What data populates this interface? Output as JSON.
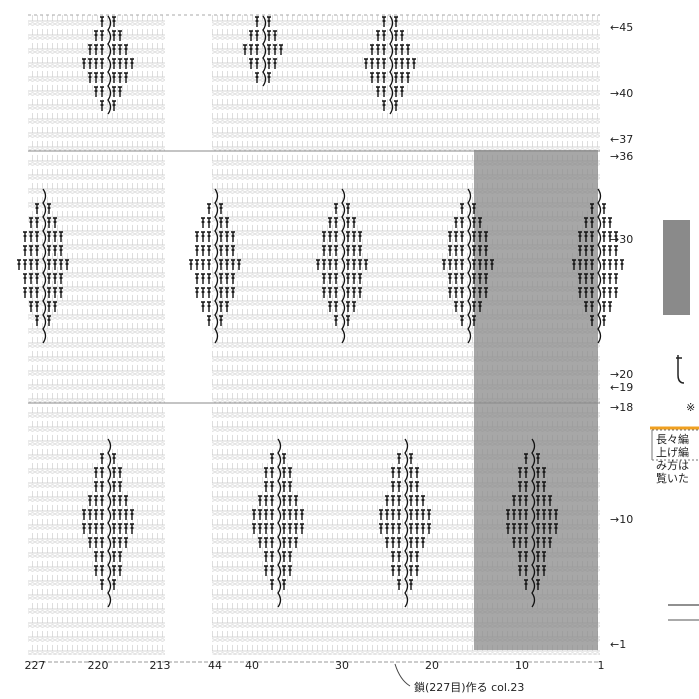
{
  "row_labels": [
    "←45",
    "→40",
    "←37",
    "→36",
    "→30",
    "→20",
    "←19",
    "→18",
    "→10",
    "←1"
  ],
  "column_labels": [
    "227",
    "220",
    "213",
    "44",
    "40",
    "30",
    "20",
    "10",
    "1"
  ],
  "caption": "鎖(227目)作る col.23",
  "side_note": {
    "mark": "※",
    "lines": [
      "長々編",
      "上げ編",
      "み方は",
      "覧いた"
    ]
  }
}
